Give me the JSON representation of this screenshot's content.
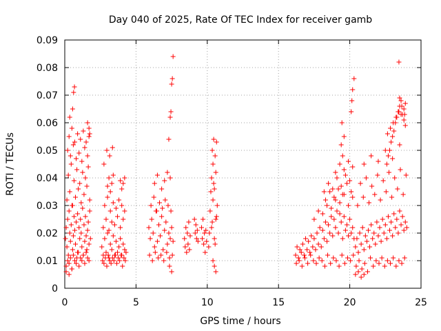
{
  "chart_data": {
    "type": "scatter",
    "title": "Day 040 of 2025, Rate Of TEC Index for receiver gamb",
    "xlabel": "GPS time / hours",
    "ylabel": "ROTI / TECUs",
    "xlim": [
      0,
      25
    ],
    "ylim": [
      0,
      0.09
    ],
    "xticks": [
      0,
      5,
      10,
      15,
      20,
      25
    ],
    "yticks": [
      0,
      0.01,
      0.02,
      0.03,
      0.04,
      0.05,
      0.06,
      0.07,
      0.08,
      0.09
    ],
    "xtick_labels": [
      "0",
      "5",
      "10",
      "15",
      "20",
      "25"
    ],
    "ytick_labels": [
      "0",
      "0.01",
      "0.02",
      "0.03",
      "0.04",
      "0.05",
      "0.06",
      "0.07",
      "0.08",
      "0.09"
    ],
    "grid": true,
    "marker": "+",
    "color": "#ff0000",
    "series": [
      {
        "name": "ROTI",
        "x": [
          0.05,
          0.1,
          0.15,
          0.2,
          0.25,
          0.3,
          0.35,
          0.4,
          0.45,
          0.5,
          0.55,
          0.6,
          0.65,
          0.7,
          0.75,
          0.8,
          0.85,
          0.9,
          0.95,
          1.0,
          1.05,
          1.1,
          1.15,
          1.2,
          1.25,
          1.3,
          1.35,
          1.4,
          1.45,
          1.5,
          1.55,
          1.6,
          1.65,
          1.7,
          1.75,
          1.8,
          0.1,
          0.2,
          0.3,
          0.4,
          0.5,
          0.6,
          0.7,
          0.8,
          0.9,
          1.0,
          1.1,
          1.2,
          1.3,
          1.4,
          1.5,
          1.6,
          1.7,
          0.15,
          0.35,
          0.55,
          0.75,
          0.95,
          1.15,
          1.35,
          1.55,
          1.75,
          0.25,
          0.45,
          0.65,
          0.85,
          1.05,
          1.25,
          1.45,
          1.65,
          0.2,
          0.4,
          0.6,
          0.8,
          1.0,
          1.2,
          1.4,
          1.6,
          0.3,
          0.5,
          0.7,
          0.9,
          1.1,
          1.3,
          1.5,
          1.7,
          0.35,
          0.55,
          0.62,
          0.68,
          0.1,
          0.3,
          0.5,
          1.6,
          1.7,
          1.75,
          2.6,
          2.7,
          2.8,
          2.9,
          3.0,
          3.1,
          3.2,
          3.3,
          3.4,
          3.5,
          3.6,
          3.7,
          3.8,
          3.9,
          4.0,
          4.1,
          4.2,
          4.3,
          2.65,
          2.75,
          2.85,
          2.95,
          3.05,
          3.15,
          3.25,
          3.35,
          3.45,
          3.55,
          3.65,
          3.75,
          3.85,
          3.95,
          4.05,
          4.15,
          4.25,
          2.7,
          2.9,
          3.1,
          3.3,
          3.5,
          3.7,
          3.9,
          4.1,
          2.8,
          3.0,
          3.2,
          3.4,
          3.6,
          3.8,
          4.0,
          4.2,
          3.0,
          3.1,
          3.2,
          3.3,
          3.4,
          3.9,
          4.0,
          4.1,
          4.2,
          2.75,
          2.95,
          3.15,
          3.35,
          5.9,
          6.0,
          6.1,
          6.2,
          6.3,
          6.4,
          6.5,
          6.6,
          6.7,
          6.8,
          6.9,
          7.0,
          7.1,
          7.2,
          7.3,
          7.4,
          7.5,
          7.6,
          5.95,
          6.15,
          6.35,
          6.55,
          6.75,
          6.95,
          7.15,
          7.35,
          7.55,
          6.05,
          6.25,
          6.45,
          6.65,
          6.85,
          7.05,
          7.25,
          7.45,
          6.3,
          6.5,
          6.8,
          7.0,
          7.2,
          7.4,
          7.3,
          7.4,
          7.45,
          7.5,
          7.55,
          7.6,
          7.35,
          7.5,
          8.4,
          8.45,
          8.5,
          8.55,
          8.6,
          8.65,
          8.7,
          8.75,
          8.8,
          9.1,
          9.15,
          9.2,
          9.25,
          9.3,
          9.35,
          9.6,
          9.65,
          9.7,
          9.75,
          9.8,
          9.85,
          9.9,
          9.95,
          10.1,
          10.2,
          10.3,
          10.4,
          10.5,
          10.6,
          10.7,
          10.15,
          10.25,
          10.35,
          10.45,
          10.55,
          10.65,
          10.3,
          10.4,
          10.5,
          10.6,
          10.35,
          10.45,
          10.55,
          10.65,
          10.4,
          10.5,
          10.6,
          16.2,
          16.3,
          16.4,
          16.5,
          16.6,
          16.7,
          16.8,
          16.9,
          17.0,
          17.1,
          17.2,
          17.3,
          17.4,
          17.5,
          17.6,
          17.7,
          17.8,
          17.9,
          18.0,
          18.1,
          18.2,
          18.3,
          18.4,
          18.5,
          18.6,
          18.7,
          18.8,
          18.9,
          19.0,
          19.1,
          19.2,
          19.3,
          19.4,
          19.5,
          19.6,
          19.7,
          19.8,
          19.9,
          20.0,
          20.1,
          20.2,
          20.3,
          16.25,
          16.45,
          16.65,
          16.85,
          17.05,
          17.25,
          17.45,
          17.65,
          17.85,
          18.05,
          18.25,
          18.45,
          18.65,
          18.85,
          19.05,
          19.25,
          19.45,
          19.65,
          19.85,
          20.05,
          20.25,
          17.5,
          17.8,
          18.1,
          18.4,
          18.7,
          19.0,
          19.3,
          19.6,
          19.9,
          20.2,
          18.2,
          18.5,
          18.8,
          19.1,
          19.4,
          19.7,
          20.0,
          18.3,
          18.6,
          18.9,
          19.2,
          19.5,
          19.8,
          20.1,
          19.0,
          19.3,
          19.6,
          19.9,
          20.2,
          19.4,
          19.5,
          19.6,
          20.1,
          20.2,
          20.3,
          20.15,
          19.45,
          20.4,
          20.5,
          20.6,
          20.7,
          20.8,
          20.9,
          21.0,
          21.1,
          21.2,
          21.3,
          21.4,
          21.5,
          21.6,
          21.7,
          21.8,
          21.9,
          22.0,
          22.1,
          22.2,
          22.3,
          22.4,
          22.5,
          22.6,
          22.7,
          22.8,
          22.9,
          23.0,
          23.1,
          23.2,
          23.3,
          23.4,
          23.5,
          23.6,
          23.7,
          23.8,
          23.9,
          24.0,
          20.45,
          20.65,
          20.85,
          21.05,
          21.25,
          21.45,
          21.65,
          21.85,
          22.05,
          22.25,
          22.45,
          22.65,
          22.85,
          23.05,
          23.25,
          23.45,
          23.65,
          23.85,
          20.55,
          20.95,
          21.35,
          21.75,
          22.15,
          22.55,
          22.95,
          23.35,
          23.75,
          20.75,
          21.15,
          21.55,
          21.95,
          22.35,
          22.75,
          23.15,
          23.55,
          23.95,
          21.0,
          21.5,
          22.0,
          22.5,
          23.0,
          23.5,
          22.6,
          22.7,
          22.8,
          22.9,
          23.0,
          23.1,
          23.2,
          23.3,
          23.4,
          23.5,
          23.6,
          23.7,
          23.8,
          23.9,
          22.65,
          22.85,
          23.05,
          23.25,
          23.45,
          23.65,
          23.85,
          20.4,
          20.6,
          20.8,
          21.0,
          23.4,
          23.5,
          23.6,
          23.8,
          23.9,
          23.45
        ],
        "y": [
          0.018,
          0.022,
          0.015,
          0.025,
          0.012,
          0.028,
          0.02,
          0.017,
          0.023,
          0.03,
          0.014,
          0.019,
          0.026,
          0.021,
          0.016,
          0.024,
          0.011,
          0.027,
          0.013,
          0.022,
          0.018,
          0.025,
          0.02,
          0.015,
          0.029,
          0.012,
          0.023,
          0.017,
          0.026,
          0.019,
          0.014,
          0.021,
          0.024,
          0.016,
          0.028,
          0.018,
          0.008,
          0.01,
          0.009,
          0.011,
          0.007,
          0.012,
          0.01,
          0.009,
          0.013,
          0.008,
          0.011,
          0.01,
          0.012,
          0.009,
          0.013,
          0.011,
          0.01,
          0.032,
          0.035,
          0.03,
          0.033,
          0.036,
          0.031,
          0.034,
          0.037,
          0.032,
          0.041,
          0.045,
          0.039,
          0.043,
          0.038,
          0.042,
          0.04,
          0.044,
          0.05,
          0.048,
          0.052,
          0.047,
          0.049,
          0.046,
          0.051,
          0.048,
          0.055,
          0.058,
          0.053,
          0.056,
          0.054,
          0.057,
          0.053,
          0.055,
          0.062,
          0.065,
          0.071,
          0.073,
          0.006,
          0.005,
          0.007,
          0.06,
          0.058,
          0.056,
          0.015,
          0.012,
          0.018,
          0.013,
          0.02,
          0.011,
          0.016,
          0.014,
          0.019,
          0.012,
          0.017,
          0.013,
          0.015,
          0.018,
          0.012,
          0.016,
          0.014,
          0.013,
          0.01,
          0.009,
          0.011,
          0.008,
          0.012,
          0.01,
          0.009,
          0.011,
          0.01,
          0.012,
          0.009,
          0.011,
          0.01,
          0.012,
          0.008,
          0.011,
          0.01,
          0.022,
          0.025,
          0.021,
          0.024,
          0.023,
          0.026,
          0.022,
          0.025,
          0.03,
          0.033,
          0.028,
          0.031,
          0.029,
          0.032,
          0.03,
          0.028,
          0.037,
          0.04,
          0.035,
          0.038,
          0.041,
          0.039,
          0.036,
          0.038,
          0.04,
          0.045,
          0.05,
          0.048,
          0.051,
          0.022,
          0.018,
          0.025,
          0.02,
          0.015,
          0.028,
          0.017,
          0.023,
          0.019,
          0.026,
          0.014,
          0.021,
          0.024,
          0.016,
          0.02,
          0.018,
          0.022,
          0.017,
          0.012,
          0.01,
          0.013,
          0.011,
          0.012,
          0.01,
          0.013,
          0.011,
          0.012,
          0.03,
          0.033,
          0.028,
          0.031,
          0.029,
          0.032,
          0.03,
          0.028,
          0.038,
          0.041,
          0.036,
          0.039,
          0.042,
          0.04,
          0.054,
          0.062,
          0.064,
          0.074,
          0.076,
          0.084,
          0.008,
          0.006,
          0.018,
          0.015,
          0.022,
          0.013,
          0.02,
          0.016,
          0.024,
          0.014,
          0.019,
          0.025,
          0.02,
          0.023,
          0.018,
          0.021,
          0.017,
          0.022,
          0.018,
          0.025,
          0.016,
          0.02,
          0.013,
          0.021,
          0.017,
          0.015,
          0.028,
          0.022,
          0.032,
          0.018,
          0.025,
          0.03,
          0.02,
          0.035,
          0.024,
          0.038,
          0.016,
          0.026,
          0.04,
          0.045,
          0.036,
          0.042,
          0.05,
          0.054,
          0.048,
          0.053,
          0.01,
          0.008,
          0.006,
          0.012,
          0.015,
          0.011,
          0.014,
          0.013,
          0.016,
          0.012,
          0.018,
          0.014,
          0.017,
          0.013,
          0.019,
          0.015,
          0.018,
          0.014,
          0.02,
          0.016,
          0.022,
          0.015,
          0.021,
          0.018,
          0.024,
          0.017,
          0.023,
          0.02,
          0.026,
          0.019,
          0.025,
          0.022,
          0.028,
          0.02,
          0.027,
          0.024,
          0.018,
          0.026,
          0.021,
          0.023,
          0.019,
          0.025,
          0.02,
          0.022,
          0.018,
          0.009,
          0.01,
          0.008,
          0.011,
          0.009,
          0.012,
          0.01,
          0.009,
          0.011,
          0.01,
          0.008,
          0.012,
          0.009,
          0.011,
          0.01,
          0.008,
          0.012,
          0.009,
          0.011,
          0.01,
          0.012,
          0.025,
          0.028,
          0.027,
          0.03,
          0.029,
          0.032,
          0.031,
          0.034,
          0.03,
          0.033,
          0.035,
          0.038,
          0.036,
          0.04,
          0.037,
          0.041,
          0.039,
          0.032,
          0.035,
          0.033,
          0.036,
          0.034,
          0.038,
          0.035,
          0.042,
          0.045,
          0.043,
          0.046,
          0.044,
          0.052,
          0.048,
          0.055,
          0.064,
          0.072,
          0.076,
          0.068,
          0.06,
          0.015,
          0.018,
          0.013,
          0.02,
          0.016,
          0.022,
          0.014,
          0.019,
          0.017,
          0.021,
          0.015,
          0.023,
          0.018,
          0.02,
          0.016,
          0.024,
          0.019,
          0.022,
          0.017,
          0.025,
          0.02,
          0.023,
          0.018,
          0.026,
          0.021,
          0.024,
          0.019,
          0.027,
          0.022,
          0.025,
          0.02,
          0.028,
          0.023,
          0.026,
          0.021,
          0.024,
          0.022,
          0.008,
          0.01,
          0.007,
          0.009,
          0.006,
          0.011,
          0.008,
          0.01,
          0.009,
          0.011,
          0.008,
          0.01,
          0.009,
          0.011,
          0.008,
          0.01,
          0.009,
          0.011,
          0.03,
          0.033,
          0.031,
          0.034,
          0.032,
          0.035,
          0.033,
          0.036,
          0.034,
          0.038,
          0.04,
          0.037,
          0.041,
          0.039,
          0.042,
          0.04,
          0.043,
          0.041,
          0.045,
          0.048,
          0.046,
          0.05,
          0.047,
          0.052,
          0.045,
          0.048,
          0.05,
          0.053,
          0.055,
          0.057,
          0.06,
          0.062,
          0.064,
          0.066,
          0.068,
          0.063,
          0.061,
          0.059,
          0.056,
          0.058,
          0.06,
          0.062,
          0.064,
          0.066,
          0.063,
          0.005,
          0.006,
          0.004,
          0.005,
          0.064,
          0.069,
          0.063,
          0.065,
          0.067,
          0.082
        ]
      }
    ]
  }
}
